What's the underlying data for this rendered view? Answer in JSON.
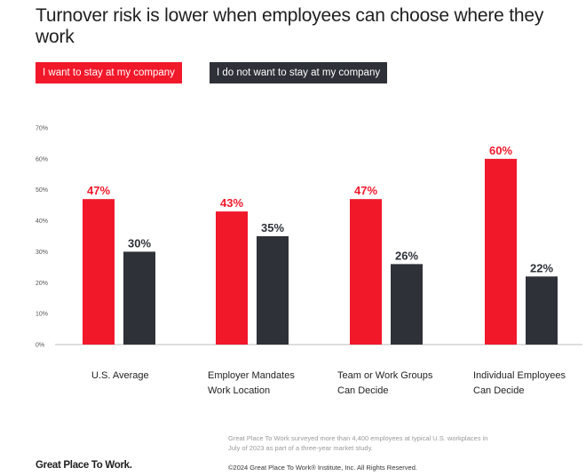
{
  "colors": {
    "want_to_stay": "#f1182a",
    "do_not_want_to_stay": "#2e3138",
    "axis": "#bbbbbb",
    "gridlines": "#e3e3e3"
  },
  "footer": {
    "note": "Great Place To Work surveyed more than 4,400 employees at typical U.S. workplaces in July of 2023 as part of a three-year market study.",
    "copyright": "©2024 Great Place To Work® Institute, Inc. All Rights Reserved.",
    "logo_text": "Great Place To Work."
  },
  "chart_data": {
    "type": "bar",
    "title": "Turnover risk is lower when employees can choose where they work",
    "categories": [
      "U.S. Average",
      "Employer Mandates\nWork Location",
      "Team or Work Groups\nCan Decide",
      "Individual Employees\nCan Decide"
    ],
    "series": [
      {
        "name": "I want to stay at my company",
        "values": [
          47,
          43,
          47,
          60
        ],
        "labels": [
          "47%",
          "43%",
          "47%",
          "60%"
        ]
      },
      {
        "name": "I do not want to stay at my company",
        "values": [
          30,
          35,
          26,
          22
        ],
        "labels": [
          "30%",
          "35%",
          "26%",
          "22%"
        ]
      }
    ],
    "y_ticks": [
      "0%",
      "10%",
      "20%",
      "30%",
      "40%",
      "50%",
      "60%",
      "70%"
    ],
    "ylim": [
      0,
      70
    ],
    "grid": false,
    "legend_position": "top-left"
  }
}
